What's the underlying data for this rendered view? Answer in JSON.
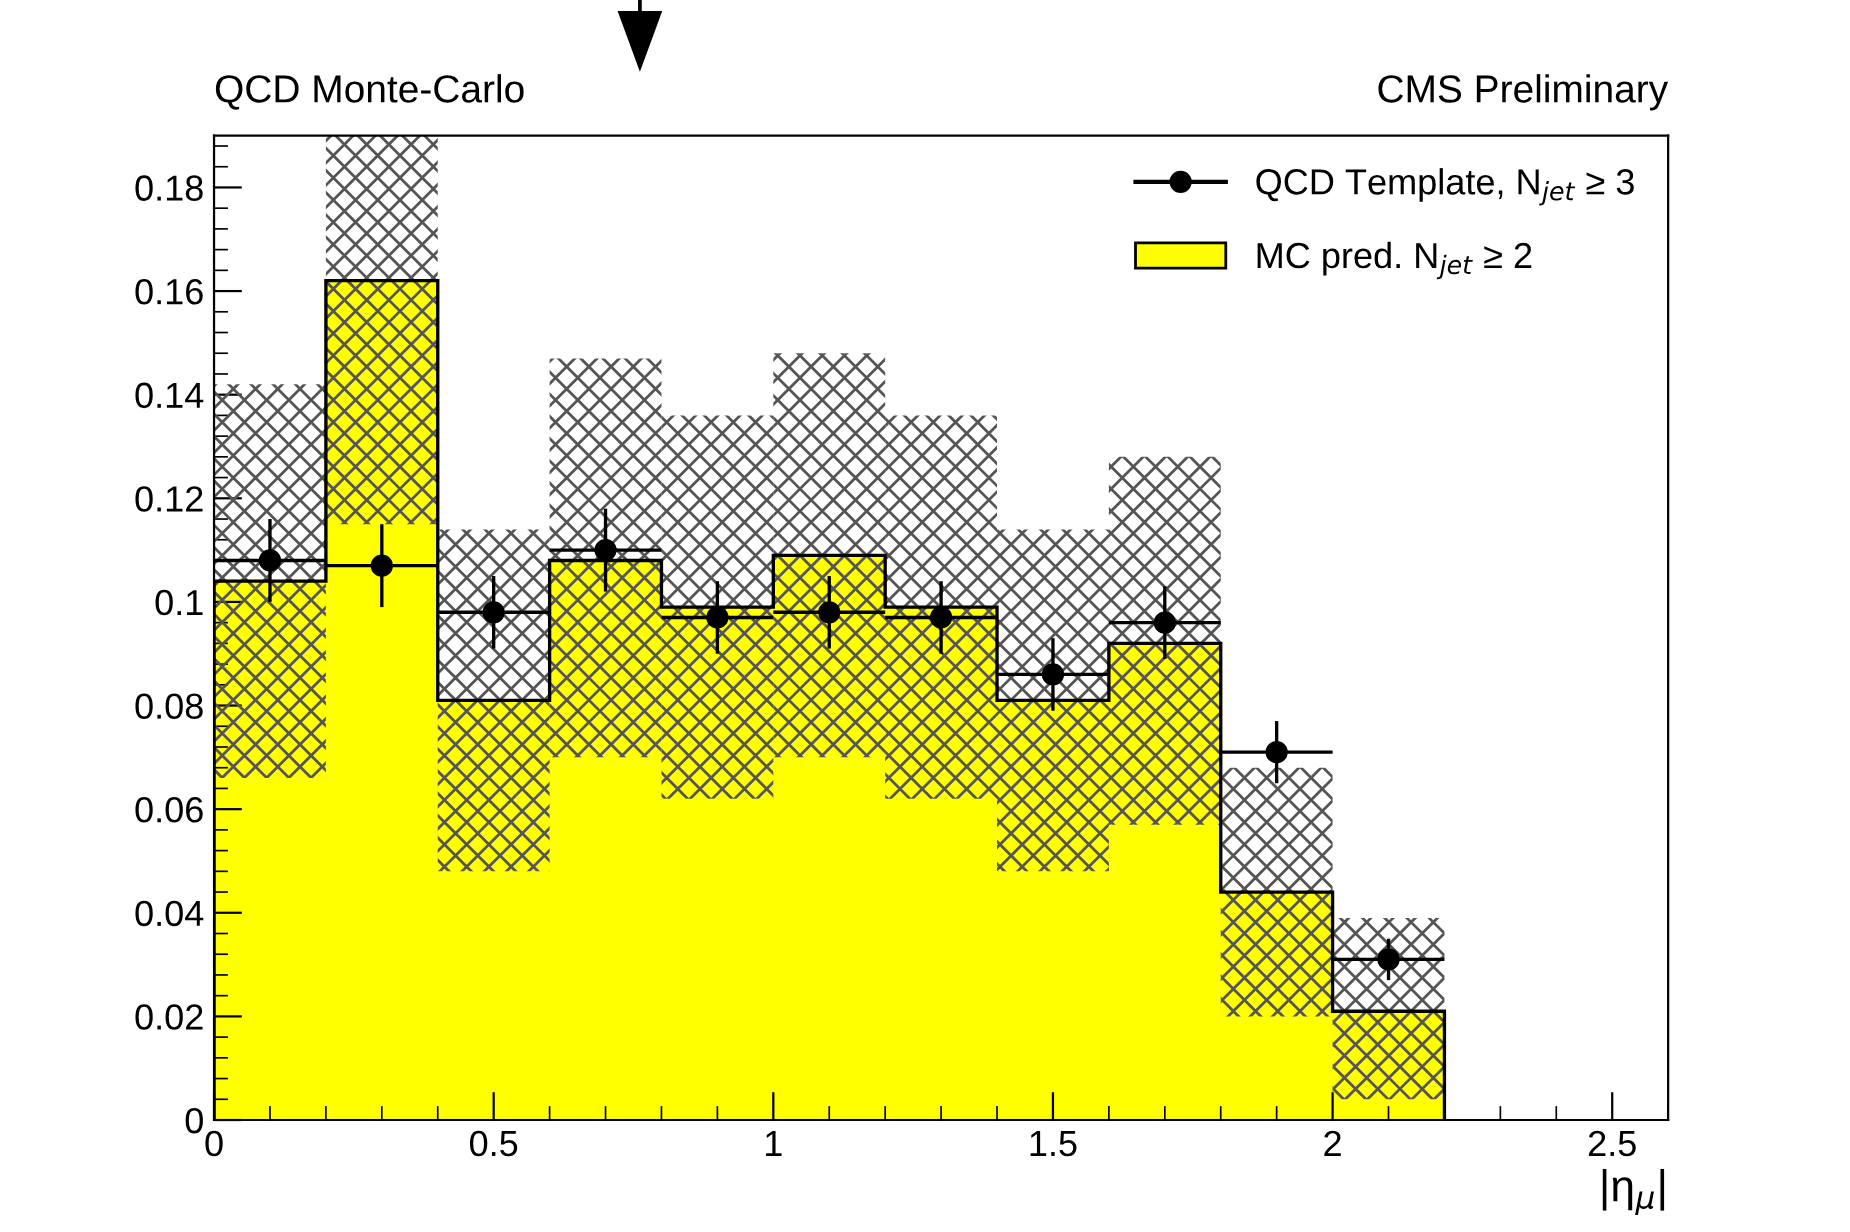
{
  "chart_data": {
    "type": "histogram",
    "title": "QCD Monte-Carlo",
    "subtitle": "CMS Preliminary",
    "xlabel": "|η$_{μ}$|",
    "bins": [
      0,
      0.2,
      0.4,
      0.6,
      0.8,
      1.0,
      1.2,
      1.4,
      1.6,
      1.8,
      2.0,
      2.2
    ],
    "series": [
      {
        "name": "MC pred. N$_{jet}$ ≥ 2",
        "color": "#ffff00",
        "values": [
          0.104,
          0.162,
          0.081,
          0.108,
          0.099,
          0.109,
          0.099,
          0.081,
          0.092,
          0.044,
          0.021
        ]
      },
      {
        "type": "bar",
        "color": "#555555",
        "x": [
          0.1,
          0.3,
          0.5,
          0.7,
          0.9,
          1.1,
          1.3,
          1.5,
          1.7,
          1.9,
          2.1
        ],
        "base": [
          0.066,
          0.115,
          0.048,
          0.07,
          0.062,
          0.07,
          0.062,
          0.048,
          0.057,
          0.02,
          0.004
        ],
        "values": [
          0.076,
          0.075,
          0.066,
          0.077,
          0.074,
          0.078,
          0.074,
          0.066,
          0.071,
          0.048,
          0.035
        ]
      },
      {
        "type": "scatter",
        "name": "QCD Template, N$_{jet}$ ≥ 3",
        "color": "#000000",
        "x": [
          0.1,
          0.3,
          0.5,
          0.7,
          0.9,
          1.1,
          1.3,
          1.5,
          1.7,
          1.9,
          2.1
        ],
        "values": [
          0.108,
          0.107,
          0.098,
          0.11,
          0.097,
          0.098,
          0.097,
          0.086,
          0.096,
          0.071,
          0.031
        ],
        "errors": [
          0.008,
          0.008,
          0.007,
          0.008,
          0.007,
          0.007,
          0.007,
          0.007,
          0.007,
          0.006,
          0.004
        ],
        "xerrors": [
          0.1,
          0.1,
          0.1,
          0.1,
          0.1,
          0.1,
          0.1,
          0.1,
          0.1,
          0.1,
          0.1
        ]
      }
    ],
    "xlim": [
      0,
      2.6
    ],
    "ylim": [
      0,
      0.19
    ],
    "xticks": [
      0,
      0.5,
      1,
      1.5,
      2,
      2.5
    ],
    "yticks": [
      0,
      0.02,
      0.04,
      0.06,
      0.08,
      0.1,
      0.12,
      0.14,
      0.16,
      0.18
    ],
    "legend": "top right",
    "marker": "circle",
    "grid": false
  }
}
